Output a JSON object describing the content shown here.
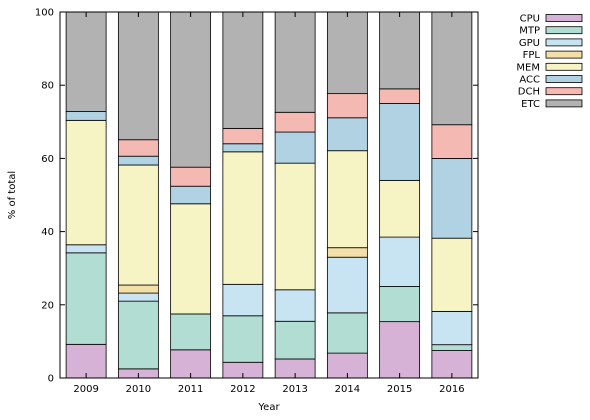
{
  "chart_data": {
    "type": "bar",
    "stacked": true,
    "title": "",
    "xlabel": "Year",
    "ylabel": "% of total",
    "ylim": [
      0,
      100
    ],
    "yticks": [
      0,
      20,
      40,
      60,
      80,
      100
    ],
    "grid": false,
    "legend_position": "top-right",
    "categories": [
      "2009",
      "2010",
      "2011",
      "2012",
      "2013",
      "2014",
      "2015",
      "2016"
    ],
    "series": [
      {
        "name": "CPU",
        "color": "#d5b2d6",
        "values": [
          9.2,
          2.5,
          7.7,
          4.3,
          5.2,
          6.8,
          15.4,
          7.5
        ]
      },
      {
        "name": "MTP",
        "color": "#b2ddd2",
        "values": [
          25.0,
          18.5,
          9.8,
          12.7,
          10.3,
          11.0,
          9.6,
          1.6
        ]
      },
      {
        "name": "GPU",
        "color": "#c8e4f3",
        "values": [
          2.2,
          2.2,
          0.0,
          8.6,
          8.6,
          15.2,
          13.5,
          9.1
        ]
      },
      {
        "name": "FPL",
        "color": "#f3dfa8",
        "values": [
          0.0,
          2.2,
          0.0,
          0.0,
          0.0,
          2.6,
          0.0,
          0.0
        ]
      },
      {
        "name": "MEM",
        "color": "#f6f3c5",
        "values": [
          34.0,
          32.8,
          30.1,
          36.2,
          34.6,
          26.5,
          15.5,
          20.0
        ]
      },
      {
        "name": "ACC",
        "color": "#b0d2e3",
        "values": [
          2.4,
          2.4,
          4.8,
          2.2,
          8.5,
          9.0,
          21.0,
          21.8
        ]
      },
      {
        "name": "DCH",
        "color": "#f4b9b2",
        "values": [
          0.0,
          4.5,
          5.2,
          4.2,
          5.4,
          6.6,
          4.0,
          9.2
        ]
      },
      {
        "name": "ETC",
        "color": "#b2b2b2",
        "values": [
          27.2,
          34.9,
          42.4,
          31.8,
          27.4,
          22.3,
          21.0,
          30.8
        ]
      }
    ]
  }
}
